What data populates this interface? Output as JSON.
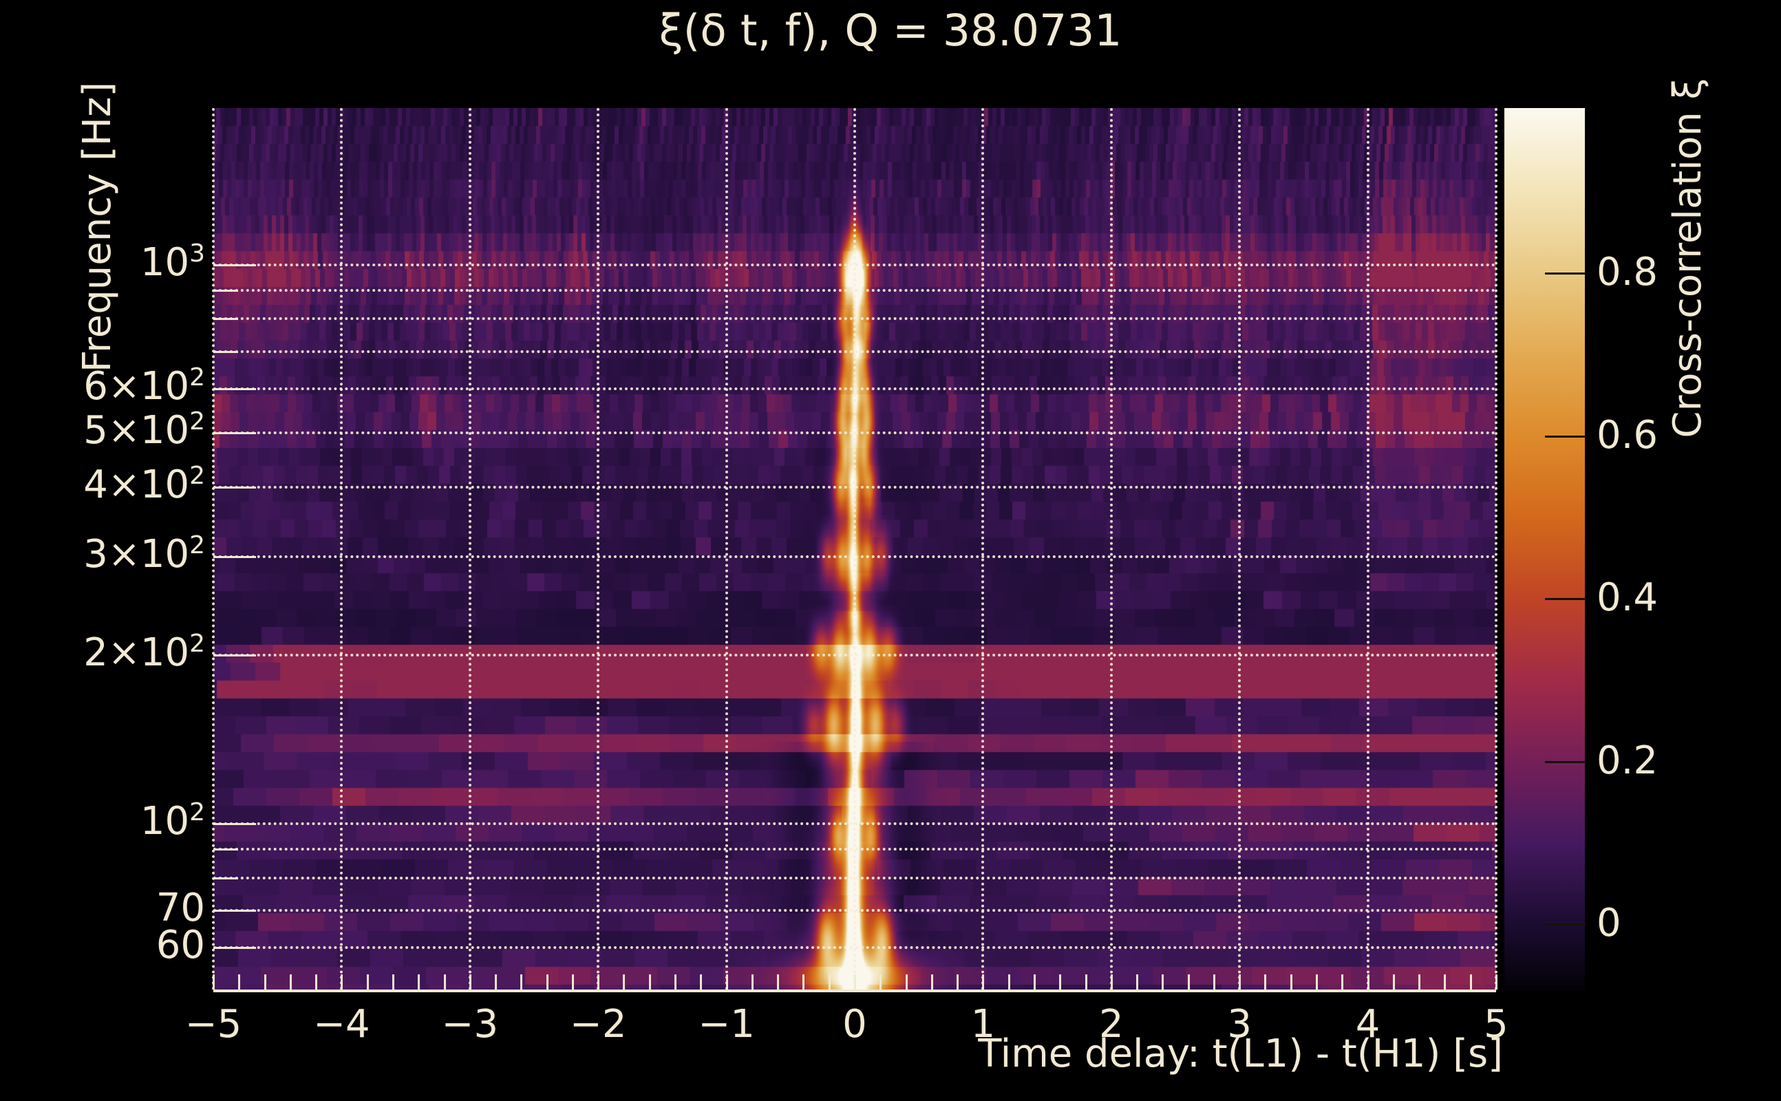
{
  "figure": {
    "title": "ξ(δ t, f), Q = 38.0731",
    "background": "#000000",
    "foreground": "#f1e9d2"
  },
  "axes": {
    "xlabel": "Time delay: t(L1) - t(H1) [s]",
    "ylabel": "Frequency [Hz]",
    "x": {
      "min": -5,
      "max": 5,
      "minor_step": 0.2,
      "tick_labels": [
        "−5",
        "−4",
        "−3",
        "−2",
        "−1",
        "0",
        "1",
        "2",
        "3",
        "4",
        "5"
      ],
      "tick_values": [
        -5,
        -4,
        -3,
        -2,
        -1,
        0,
        1,
        2,
        3,
        4,
        5
      ]
    },
    "y": {
      "scale": "log",
      "min_hz": 50.2,
      "max_hz": 1907,
      "labeled_ticks": [
        {
          "f": 1000,
          "pre": "10",
          "sup": "3"
        },
        {
          "f": 600,
          "pre": "6×10",
          "sup": "2"
        },
        {
          "f": 500,
          "pre": "5×10",
          "sup": "2"
        },
        {
          "f": 400,
          "pre": "4×10",
          "sup": "2"
        },
        {
          "f": 300,
          "pre": "3×10",
          "sup": "2"
        },
        {
          "f": 200,
          "pre": "2×10",
          "sup": "2"
        },
        {
          "f": 100,
          "pre": "10",
          "sup": "2"
        },
        {
          "f": 70,
          "pre": "70",
          "sup": ""
        },
        {
          "f": 60,
          "pre": "60",
          "sup": ""
        }
      ],
      "minor_ticks": [
        900,
        800,
        700,
        90,
        80
      ]
    }
  },
  "colorbar": {
    "label": "Cross-correlation ξ",
    "vmin": -0.082,
    "vmax": 1.003,
    "ticks": [
      {
        "v": 0.8,
        "label": "0.8"
      },
      {
        "v": 0.6,
        "label": "0.6"
      },
      {
        "v": 0.4,
        "label": "0.4"
      },
      {
        "v": 0.2,
        "label": "0.2"
      },
      {
        "v": 0.0,
        "label": "0"
      }
    ]
  },
  "chart_data": {
    "type": "heatmap",
    "title": "ξ(δ t, f), Q = 38.0731",
    "q_value": 38.0731,
    "xlabel": "Time delay: t(L1) - t(H1) [s]",
    "ylabel": "Frequency [Hz]",
    "x_range_s": [
      -5,
      5
    ],
    "f_range_hz": [
      50.2,
      1907
    ],
    "value_range": [
      -0.082,
      1.003
    ],
    "grid": "dotted, x every 1 s, y at 60,70,80,90,100,200,...,1000 Hz",
    "legend_position": "right colorbar",
    "description": "Cross-correlation of L1 vs H1 Q-transform spectrograms; a narrow high-correlation ridge at time delay 0 spans ~50-1100 Hz, brightest (ξ≈1) below 160 Hz, with orange side lobes at ±0.05-0.3 s; background is low-level noise (ξ≈0-0.25).",
    "colormap_stops": [
      {
        "v": -0.082,
        "c": "#030207"
      },
      {
        "v": 0.0,
        "c": "#1b0c32"
      },
      {
        "v": 0.1,
        "c": "#45195f"
      },
      {
        "v": 0.2,
        "c": "#751f58"
      },
      {
        "v": 0.3,
        "c": "#a12b48"
      },
      {
        "v": 0.4,
        "c": "#c04425"
      },
      {
        "v": 0.5,
        "c": "#d3691c"
      },
      {
        "v": 0.6,
        "c": "#dd8b2b"
      },
      {
        "v": 0.7,
        "c": "#e3aa52"
      },
      {
        "v": 0.8,
        "c": "#e9c983"
      },
      {
        "v": 0.9,
        "c": "#f3e4b8"
      },
      {
        "v": 1.0,
        "c": "#fbf8ee"
      }
    ],
    "ridge_profile": [
      [
        50,
        1.0
      ],
      [
        56,
        1.0
      ],
      [
        62,
        1.0
      ],
      [
        70,
        0.95
      ],
      [
        80,
        0.9
      ],
      [
        92,
        0.95
      ],
      [
        102,
        0.9
      ],
      [
        112,
        0.82
      ],
      [
        125,
        0.68
      ],
      [
        140,
        0.88
      ],
      [
        155,
        0.92
      ],
      [
        170,
        0.72
      ],
      [
        185,
        0.62
      ],
      [
        200,
        0.8
      ],
      [
        218,
        0.62
      ],
      [
        235,
        0.7
      ],
      [
        255,
        0.58
      ],
      [
        275,
        0.72
      ],
      [
        295,
        0.82
      ],
      [
        320,
        0.66
      ],
      [
        350,
        0.6
      ],
      [
        380,
        0.72
      ],
      [
        410,
        0.8
      ],
      [
        440,
        0.6
      ],
      [
        470,
        0.64
      ],
      [
        505,
        0.72
      ],
      [
        540,
        0.6
      ],
      [
        575,
        0.68
      ],
      [
        615,
        0.62
      ],
      [
        660,
        0.55
      ],
      [
        705,
        0.64
      ],
      [
        755,
        0.54
      ],
      [
        805,
        0.6
      ],
      [
        860,
        0.55
      ],
      [
        915,
        0.64
      ],
      [
        965,
        0.68
      ],
      [
        1015,
        0.6
      ],
      [
        1070,
        0.48
      ],
      [
        1130,
        0.34
      ],
      [
        1200,
        0.18
      ],
      [
        1300,
        0.08
      ],
      [
        1450,
        0.02
      ],
      [
        1900,
        0.0
      ]
    ],
    "side_lobes": [
      {
        "f": 62,
        "dt": 0.22,
        "a": 0.5,
        "st": 0.05,
        "sf": 0.035
      },
      {
        "f": 95,
        "dt": 0.13,
        "a": 0.38,
        "st": 0.04,
        "sf": 0.03
      },
      {
        "f": 150,
        "dt": 0.17,
        "a": 0.55,
        "st": 0.05,
        "sf": 0.04
      },
      {
        "f": 150,
        "dt": 0.32,
        "a": 0.28,
        "st": 0.05,
        "sf": 0.03
      },
      {
        "f": 205,
        "dt": 0.12,
        "a": 0.5,
        "st": 0.045,
        "sf": 0.035
      },
      {
        "f": 205,
        "dt": 0.26,
        "a": 0.38,
        "st": 0.05,
        "sf": 0.03
      },
      {
        "f": 300,
        "dt": 0.1,
        "a": 0.48,
        "st": 0.04,
        "sf": 0.035
      },
      {
        "f": 300,
        "dt": 0.21,
        "a": 0.3,
        "st": 0.04,
        "sf": 0.03
      },
      {
        "f": 400,
        "dt": 0.11,
        "a": 0.48,
        "st": 0.04,
        "sf": 0.035
      },
      {
        "f": 460,
        "dt": 0.07,
        "a": 0.4,
        "st": 0.03,
        "sf": 0.03
      },
      {
        "f": 520,
        "dt": 0.1,
        "a": 0.45,
        "st": 0.035,
        "sf": 0.03
      },
      {
        "f": 600,
        "dt": 0.08,
        "a": 0.45,
        "st": 0.035,
        "sf": 0.03
      },
      {
        "f": 700,
        "dt": 0.06,
        "a": 0.42,
        "st": 0.03,
        "sf": 0.028
      },
      {
        "f": 800,
        "dt": 0.09,
        "a": 0.4,
        "st": 0.035,
        "sf": 0.028
      },
      {
        "f": 900,
        "dt": 0.05,
        "a": 0.45,
        "st": 0.03,
        "sf": 0.028
      },
      {
        "f": 980,
        "dt": 0.08,
        "a": 0.38,
        "st": 0.03,
        "sf": 0.03
      },
      {
        "f": 1040,
        "dt": 0.04,
        "a": 0.3,
        "st": 0.025,
        "sf": 0.03
      }
    ],
    "noise_bands": [
      [
        50,
        68,
        1.35
      ],
      [
        68,
        95,
        1.05
      ],
      [
        95,
        122,
        1.5
      ],
      [
        122,
        162,
        1.35
      ],
      [
        162,
        212,
        2.1
      ],
      [
        212,
        295,
        0.9
      ],
      [
        295,
        490,
        1.0
      ],
      [
        490,
        625,
        1.6
      ],
      [
        625,
        890,
        1.05
      ],
      [
        890,
        1160,
        1.7
      ],
      [
        1160,
        1500,
        1.1
      ],
      [
        1500,
        1910,
        1.3
      ]
    ]
  }
}
